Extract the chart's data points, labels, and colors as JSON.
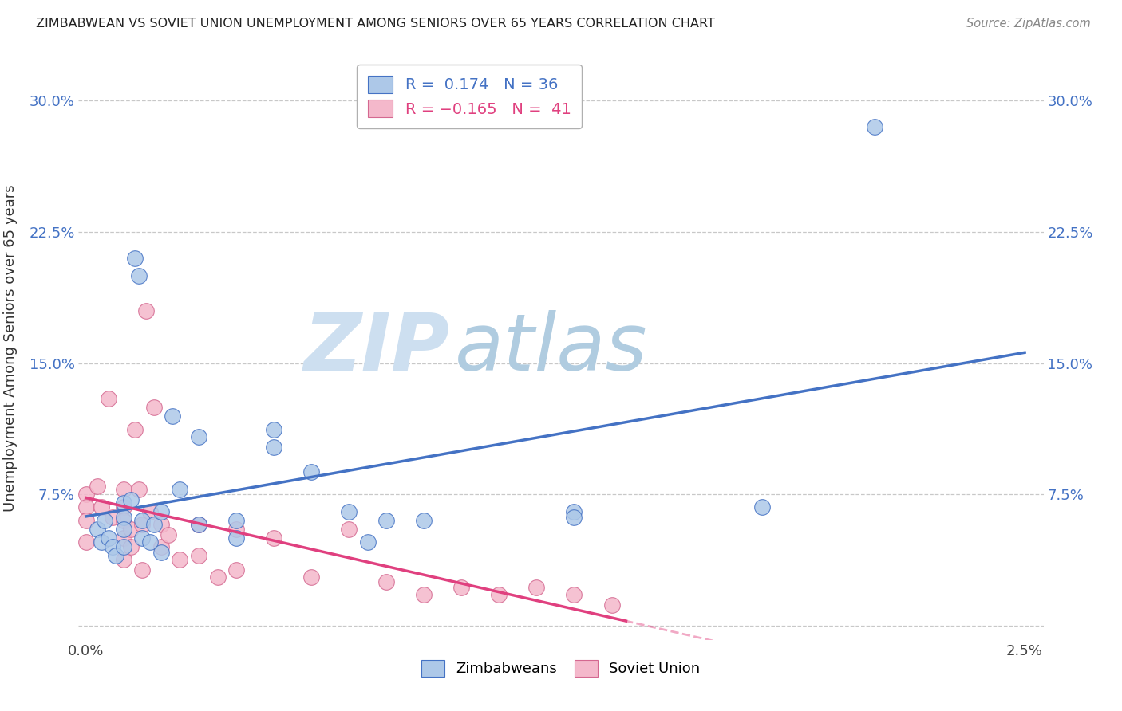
{
  "title": "ZIMBABWEAN VS SOVIET UNION UNEMPLOYMENT AMONG SENIORS OVER 65 YEARS CORRELATION CHART",
  "source": "Source: ZipAtlas.com",
  "ylabel": "Unemployment Among Seniors over 65 years",
  "legend_zimbabwe": "Zimbabweans",
  "legend_soviet": "Soviet Union",
  "r_zimbabwe": 0.174,
  "n_zimbabwe": 36,
  "r_soviet": -0.165,
  "n_soviet": 41,
  "xlim": [
    -0.0002,
    0.0255
  ],
  "ylim": [
    -0.008,
    0.325
  ],
  "x_ticks": [
    0.0,
    0.005,
    0.01,
    0.015,
    0.02,
    0.025
  ],
  "x_tick_labels": [
    "0.0%",
    "",
    "",
    "",
    "",
    "2.5%"
  ],
  "y_ticks": [
    0.0,
    0.075,
    0.15,
    0.225,
    0.3
  ],
  "y_tick_labels": [
    "",
    "7.5%",
    "15.0%",
    "22.5%",
    "30.0%"
  ],
  "color_zimbabwe_face": "#adc8e8",
  "color_zimbabwe_edge": "#4472c4",
  "color_soviet_face": "#f4b8cb",
  "color_soviet_edge": "#d46890",
  "trendline_zimbabwe": "#4472c4",
  "trendline_soviet": "#e0407f",
  "watermark_color": "#dce8f2",
  "zimbabwe_x": [
    0.0003,
    0.0004,
    0.0005,
    0.0006,
    0.0007,
    0.0008,
    0.001,
    0.001,
    0.001,
    0.001,
    0.0012,
    0.0013,
    0.0014,
    0.0015,
    0.0015,
    0.0017,
    0.0018,
    0.002,
    0.002,
    0.0023,
    0.0025,
    0.003,
    0.003,
    0.004,
    0.004,
    0.005,
    0.005,
    0.006,
    0.007,
    0.0075,
    0.008,
    0.009,
    0.013,
    0.013,
    0.018,
    0.021
  ],
  "zimbabwe_y": [
    0.055,
    0.048,
    0.06,
    0.05,
    0.045,
    0.04,
    0.07,
    0.062,
    0.055,
    0.045,
    0.072,
    0.21,
    0.2,
    0.06,
    0.05,
    0.048,
    0.058,
    0.065,
    0.042,
    0.12,
    0.078,
    0.108,
    0.058,
    0.06,
    0.05,
    0.112,
    0.102,
    0.088,
    0.065,
    0.048,
    0.06,
    0.06,
    0.065,
    0.062,
    0.068,
    0.285
  ],
  "soviet_x": [
    0.0,
    0.0,
    0.0,
    0.0,
    0.0003,
    0.0004,
    0.0006,
    0.0007,
    0.001,
    0.001,
    0.001,
    0.001,
    0.001,
    0.0012,
    0.0012,
    0.0013,
    0.0014,
    0.0015,
    0.0015,
    0.0016,
    0.0017,
    0.0018,
    0.002,
    0.002,
    0.0022,
    0.0025,
    0.003,
    0.003,
    0.0035,
    0.004,
    0.004,
    0.005,
    0.006,
    0.007,
    0.008,
    0.009,
    0.01,
    0.011,
    0.012,
    0.013,
    0.014
  ],
  "soviet_y": [
    0.075,
    0.068,
    0.06,
    0.048,
    0.08,
    0.068,
    0.13,
    0.062,
    0.078,
    0.068,
    0.06,
    0.05,
    0.038,
    0.055,
    0.045,
    0.112,
    0.078,
    0.058,
    0.032,
    0.18,
    0.065,
    0.125,
    0.058,
    0.045,
    0.052,
    0.038,
    0.058,
    0.04,
    0.028,
    0.055,
    0.032,
    0.05,
    0.028,
    0.055,
    0.025,
    0.018,
    0.022,
    0.018,
    0.022,
    0.018,
    0.012
  ]
}
